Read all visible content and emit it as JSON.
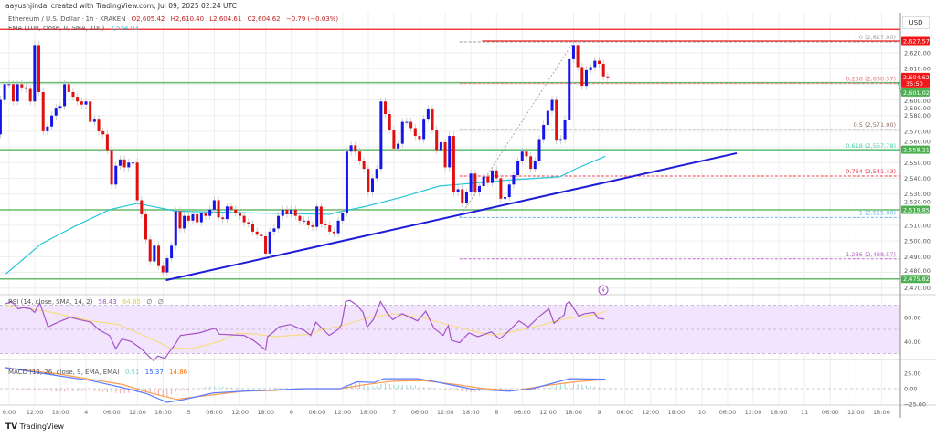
{
  "header": {
    "credit": "aayushjindal created with TradingView.com, Jul 09, 2025 02:24 UTC"
  },
  "legend": {
    "symbol": "Ethereum / U.S. Dollar · 1h · KRAKEN",
    "open": "O2,605.42",
    "high": "H2,610.40",
    "low": "L2,604.61",
    "close": "C2,604.62",
    "change": "−0.79 (−0.03%)",
    "ema_label": "EMA (100, close, 0, SMA, 100)",
    "ema_value": "2,554.03"
  },
  "rsi_legend": {
    "label": "RSI (14, close, SMA, 14, 2)",
    "rsi": "58.43",
    "signal": "64.85",
    "extra1": "∅",
    "extra2": "∅"
  },
  "macd_legend": {
    "label": "MACD (12, 26, close, 9, EMA, EMA)",
    "hist": "0.51",
    "macd": "15.37",
    "signal": "14.86"
  },
  "price_axis": {
    "currency": "USD",
    "ticks": [
      "2,620.00",
      "2,610.00",
      "2,600.00",
      "2,590.00",
      "2,580.00",
      "2,570.00",
      "2,560.00",
      "2,550.00",
      "2,540.00",
      "2,530.00",
      "2,520.00",
      "2,510.00",
      "2,500.00",
      "2,490.00",
      "2,480.00",
      "2,470.00"
    ],
    "labels": [
      {
        "text": "2,627.57",
        "value": 2627.57,
        "color": "#f01818"
      },
      {
        "text": "2,604.62",
        "sub": "35:50",
        "value": 2604.62,
        "color": "#f01818"
      },
      {
        "text": "2,601.02",
        "value": 2601.02,
        "color": "#4caf50"
      },
      {
        "text": "2,558.21",
        "value": 2558.21,
        "color": "#4caf50"
      },
      {
        "text": "2,519.85",
        "value": 2519.85,
        "color": "#4caf50"
      },
      {
        "text": "2,475.82",
        "value": 2475.82,
        "color": "#4caf50"
      }
    ]
  },
  "rsi_axis": {
    "ticks": [
      "60.00",
      "40.00"
    ]
  },
  "macd_axis": {
    "ticks": [
      "25.00",
      "0.00",
      "−25.00"
    ]
  },
  "time_axis": {
    "ticks": [
      "6:00",
      "12:00",
      "18:00",
      "4",
      "06:00",
      "12:00",
      "18:00",
      "5",
      "06:00",
      "12:00",
      "18:00",
      "6",
      "06:00",
      "12:00",
      "18:00",
      "7",
      "06:00",
      "12:00",
      "18:00",
      "8",
      "06:00",
      "12:00",
      "18:00",
      "9",
      "06:00",
      "12:00",
      "18:00",
      "10",
      "06:00",
      "12:00",
      "18:00",
      "11",
      "06:00",
      "12:00",
      "18:00"
    ]
  },
  "footer": {
    "brand": "TradingView"
  },
  "colors": {
    "up": "#1515e8",
    "down": "#e01010",
    "support": "#66bb6a",
    "ema": "#26c6da",
    "trendline": "#1c1cd8",
    "rsi": "#a552c8",
    "rsi_signal": "#f7dc6f",
    "macd": "#5b7cff",
    "macd_signal": "#ff9a4a"
  },
  "chart_data": [
    {
      "type": "candlestick",
      "title": "Ethereum / U.S. Dollar · 1h · KRAKEN",
      "first_candle": "2025-07-03 04:00",
      "interval": "1h",
      "first_open": 2568,
      "closes": [
        2590,
        2600,
        2600,
        2589,
        2600,
        2598,
        2597,
        2589,
        2625,
        2595,
        2570,
        2573,
        2580,
        2585,
        2586,
        2600,
        2595,
        2592,
        2589,
        2587,
        2589,
        2576,
        2578,
        2570,
        2568,
        2558,
        2536,
        2548,
        2552,
        2547,
        2550,
        2550,
        2526,
        2517,
        2501,
        2487,
        2497,
        2484,
        2480,
        2489,
        2497,
        2519,
        2508,
        2516,
        2513,
        2517,
        2512,
        2518,
        2516,
        2520,
        2526,
        2515,
        2514,
        2522,
        2520,
        2518,
        2516,
        2512,
        2511,
        2506,
        2504,
        2503,
        2492,
        2506,
        2508,
        2516,
        2520,
        2517,
        2520,
        2516,
        2513,
        2513,
        2510,
        2509,
        2522,
        2511,
        2510,
        2506,
        2505,
        2513,
        2518,
        2557,
        2561,
        2557,
        2551,
        2546,
        2531,
        2540,
        2546,
        2589,
        2581,
        2571,
        2559,
        2562,
        2576,
        2576,
        2572,
        2567,
        2565,
        2578,
        2584,
        2571,
        2558,
        2563,
        2547,
        2567,
        2531,
        2533,
        2524,
        2531,
        2543,
        2531,
        2535,
        2541,
        2537,
        2545,
        2540,
        2527,
        2528,
        2536,
        2542,
        2551,
        2557,
        2554,
        2546,
        2551,
        2565,
        2574,
        2583,
        2590,
        2564,
        2565,
        2577,
        2616,
        2625,
        2611,
        2599,
        2609,
        2611,
        2615,
        2613,
        2605,
        2604.62
      ],
      "ylim": [
        2465,
        2638
      ],
      "x_unit": "day of July 2025",
      "ema_100": [
        [
          3.22,
          2479
        ],
        [
          3.56,
          2498
        ],
        [
          3.88,
          2509
        ],
        [
          4.23,
          2520
        ],
        [
          4.5,
          2524
        ],
        [
          4.88,
          2519
        ],
        [
          5.57,
          2518
        ],
        [
          6.37,
          2517
        ],
        [
          6.5,
          2519
        ],
        [
          6.72,
          2522
        ],
        [
          7.08,
          2528
        ],
        [
          7.44,
          2535
        ],
        [
          8.15,
          2539
        ],
        [
          8.62,
          2541
        ],
        [
          8.77,
          2546
        ],
        [
          9.06,
          2554.03
        ]
      ],
      "support_lines": [
        2601.02,
        2558.21,
        2519.85,
        2475.82
      ],
      "resistance_lines": [
        {
          "value": 2635,
          "from_day": 3.0
        },
        {
          "value": 2627.57,
          "from_day": 7.86
        }
      ],
      "trendline": [
        [
          4.78,
          2475
        ],
        [
          10.34,
          2556
        ]
      ],
      "fibonacci": {
        "from": [
          7.64,
          2515
        ],
        "to": [
          8.75,
          2627
        ],
        "levels": [
          {
            "label": "0 (2,627.00)",
            "value": 2627.0,
            "color": "#9e9e9e"
          },
          {
            "label": "0.236 (2,600.57)",
            "value": 2600.57,
            "color": "#e57373"
          },
          {
            "label": "0.5 (2,571.00)",
            "value": 2571.0,
            "color": "#8d6e63"
          },
          {
            "label": "0.618 (2,557.78)",
            "value": 2557.78,
            "color": "#4dd0a0"
          },
          {
            "label": "0.764 (2,541.43)",
            "value": 2541.43,
            "color": "#f23645"
          },
          {
            "label": "1 (2,515.00)",
            "value": 2515.0,
            "color": "#64b5f6"
          },
          {
            "label": "1.236 (2,488.57)",
            "value": 2488.57,
            "color": "#ba68c8"
          }
        ]
      }
    },
    {
      "type": "line",
      "title": "RSI (14, close, SMA, 14, 2)",
      "ylim": [
        20,
        80
      ],
      "band": [
        30,
        70
      ],
      "rsi": [
        [
          3.21,
          71
        ],
        [
          3.28,
          73
        ],
        [
          3.34,
          67
        ],
        [
          3.39,
          68
        ],
        [
          3.46,
          67
        ],
        [
          3.5,
          64
        ],
        [
          3.55,
          72
        ],
        [
          3.63,
          52
        ],
        [
          3.68,
          54
        ],
        [
          3.76,
          57
        ],
        [
          3.85,
          60
        ],
        [
          3.94,
          58
        ],
        [
          4.05,
          56
        ],
        [
          4.12,
          50
        ],
        [
          4.23,
          45
        ],
        [
          4.29,
          34
        ],
        [
          4.35,
          42
        ],
        [
          4.44,
          40
        ],
        [
          4.54,
          34
        ],
        [
          4.61,
          28
        ],
        [
          4.66,
          24
        ],
        [
          4.7,
          28
        ],
        [
          4.77,
          26
        ],
        [
          4.81,
          31
        ],
        [
          4.88,
          39
        ],
        [
          4.92,
          45
        ],
        [
          5.1,
          47
        ],
        [
          5.26,
          51
        ],
        [
          5.3,
          46
        ],
        [
          5.54,
          45
        ],
        [
          5.63,
          41
        ],
        [
          5.75,
          33
        ],
        [
          5.77,
          44
        ],
        [
          5.83,
          48
        ],
        [
          5.88,
          52
        ],
        [
          5.99,
          54
        ],
        [
          6.13,
          49
        ],
        [
          6.19,
          45
        ],
        [
          6.24,
          56
        ],
        [
          6.31,
          50
        ],
        [
          6.37,
          45
        ],
        [
          6.46,
          50
        ],
        [
          6.49,
          54
        ],
        [
          6.53,
          73
        ],
        [
          6.57,
          74
        ],
        [
          6.64,
          70
        ],
        [
          6.7,
          64
        ],
        [
          6.74,
          52
        ],
        [
          6.8,
          58
        ],
        [
          6.87,
          73
        ],
        [
          6.93,
          64
        ],
        [
          6.99,
          58
        ],
        [
          7.08,
          63
        ],
        [
          7.23,
          57
        ],
        [
          7.31,
          65
        ],
        [
          7.39,
          51
        ],
        [
          7.48,
          45
        ],
        [
          7.53,
          53
        ],
        [
          7.56,
          41
        ],
        [
          7.64,
          39
        ],
        [
          7.73,
          47
        ],
        [
          7.82,
          44
        ],
        [
          7.95,
          48
        ],
        [
          8.03,
          42
        ],
        [
          8.1,
          47
        ],
        [
          8.22,
          57
        ],
        [
          8.31,
          52
        ],
        [
          8.42,
          61
        ],
        [
          8.51,
          67
        ],
        [
          8.56,
          55
        ],
        [
          8.66,
          62
        ],
        [
          8.68,
          71
        ],
        [
          8.71,
          73
        ],
        [
          8.8,
          61
        ],
        [
          8.86,
          63
        ],
        [
          8.95,
          64
        ],
        [
          8.99,
          59
        ],
        [
          9.05,
          58.43
        ]
      ],
      "signal": [
        [
          3.21,
          70
        ],
        [
          3.61,
          65
        ],
        [
          4.05,
          57
        ],
        [
          4.32,
          54
        ],
        [
          4.59,
          44
        ],
        [
          4.81,
          35
        ],
        [
          5.03,
          34
        ],
        [
          5.3,
          40
        ],
        [
          5.48,
          47
        ],
        [
          5.66,
          46
        ],
        [
          5.83,
          44
        ],
        [
          6.19,
          46
        ],
        [
          6.31,
          50
        ],
        [
          6.5,
          53
        ],
        [
          6.72,
          59
        ],
        [
          6.99,
          63
        ],
        [
          7.26,
          60
        ],
        [
          7.44,
          56
        ],
        [
          7.7,
          50
        ],
        [
          7.97,
          45
        ],
        [
          8.15,
          48
        ],
        [
          8.42,
          53
        ],
        [
          8.68,
          59
        ],
        [
          8.95,
          62
        ],
        [
          9.06,
          64.85
        ]
      ]
    },
    {
      "type": "line",
      "title": "MACD (12, 26, close, 9, EMA, EMA)",
      "ylim": [
        -28,
        40
      ],
      "macd": [
        [
          3.21,
          34
        ],
        [
          3.76,
          20
        ],
        [
          4.05,
          13
        ],
        [
          4.35,
          2
        ],
        [
          4.59,
          -8
        ],
        [
          4.79,
          -22
        ],
        [
          4.94,
          -18
        ],
        [
          5.24,
          -7
        ],
        [
          5.54,
          -4
        ],
        [
          5.83,
          -2
        ],
        [
          6.13,
          0
        ],
        [
          6.48,
          0
        ],
        [
          6.64,
          11
        ],
        [
          6.81,
          10
        ],
        [
          6.9,
          16
        ],
        [
          7.23,
          16
        ],
        [
          7.35,
          13
        ],
        [
          7.59,
          5
        ],
        [
          7.77,
          -1
        ],
        [
          8.12,
          -4
        ],
        [
          8.35,
          0
        ],
        [
          8.71,
          16
        ],
        [
          9.06,
          15.37
        ]
      ],
      "signal": [
        [
          3.21,
          34
        ],
        [
          3.76,
          23
        ],
        [
          4.05,
          15
        ],
        [
          4.35,
          7
        ],
        [
          4.65,
          -8
        ],
        [
          4.88,
          -17
        ],
        [
          5.24,
          -10
        ],
        [
          5.54,
          -4
        ],
        [
          5.83,
          -3
        ],
        [
          6.13,
          0
        ],
        [
          6.48,
          0
        ],
        [
          6.7,
          6
        ],
        [
          6.99,
          12
        ],
        [
          7.29,
          13
        ],
        [
          7.59,
          7
        ],
        [
          7.88,
          0
        ],
        [
          8.18,
          -3
        ],
        [
          8.48,
          5
        ],
        [
          8.77,
          11
        ],
        [
          9.06,
          14.86
        ]
      ]
    }
  ]
}
